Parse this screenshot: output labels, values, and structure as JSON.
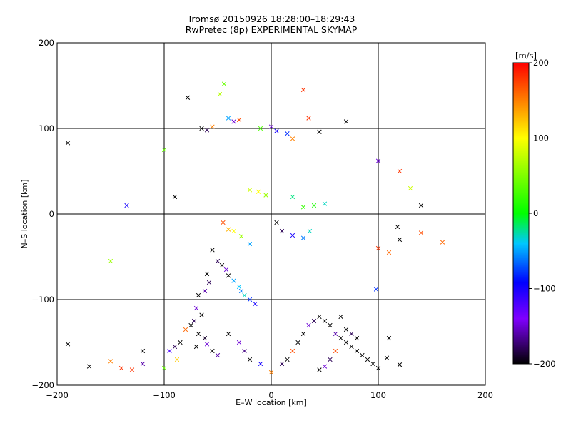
{
  "chart_data": {
    "type": "scatter",
    "title": "Tromsø 20150926 18:28:00–18:29:43",
    "subtitle": "RwPretec (8p) EXPERIMENTAL SKYMAP",
    "xlabel": "E–W location [km]",
    "ylabel": "N–S location [km]",
    "xlim": [
      -200,
      200
    ],
    "ylim": [
      -200,
      200
    ],
    "x_ticks": [
      -200,
      -100,
      0,
      100,
      200
    ],
    "y_ticks": [
      -200,
      -100,
      0,
      100,
      200
    ],
    "grid": true,
    "colorbar": {
      "label": "[m/s]",
      "range": [
        -200,
        200
      ],
      "ticks": [
        200,
        100,
        0,
        -100,
        -200
      ],
      "colors": [
        "#000000",
        "#8000ff",
        "#0000ff",
        "#00c8ff",
        "#00ff00",
        "#ffff00",
        "#ff0000"
      ]
    },
    "series": [
      {
        "marker": "x",
        "points": [
          [
            -190,
            83
          ],
          [
            -190,
            -152
          ],
          [
            -140,
            -180
          ],
          [
            -150,
            -172
          ],
          [
            -170,
            -178
          ],
          [
            -135,
            10
          ],
          [
            -150,
            -55
          ],
          [
            -78,
            136
          ],
          [
            -65,
            100
          ],
          [
            -60,
            98
          ],
          [
            -55,
            102
          ],
          [
            -48,
            140
          ],
          [
            -44,
            152
          ],
          [
            -40,
            112
          ],
          [
            -35,
            108
          ],
          [
            -30,
            110
          ],
          [
            -10,
            100
          ],
          [
            0,
            102
          ],
          [
            5,
            97
          ],
          [
            15,
            94
          ],
          [
            20,
            88
          ],
          [
            35,
            112
          ],
          [
            45,
            96
          ],
          [
            -20,
            28
          ],
          [
            -12,
            26
          ],
          [
            -5,
            22
          ],
          [
            20,
            20
          ],
          [
            30,
            8
          ],
          [
            40,
            10
          ],
          [
            50,
            12
          ],
          [
            -45,
            -10
          ],
          [
            -40,
            -18
          ],
          [
            -35,
            -20
          ],
          [
            -28,
            -26
          ],
          [
            -20,
            -35
          ],
          [
            5,
            -10
          ],
          [
            10,
            -20
          ],
          [
            20,
            -25
          ],
          [
            30,
            -28
          ],
          [
            36,
            -20
          ],
          [
            -55,
            -42
          ],
          [
            -50,
            -55
          ],
          [
            -46,
            -60
          ],
          [
            -42,
            -65
          ],
          [
            -40,
            -72
          ],
          [
            -35,
            -78
          ],
          [
            -30,
            -85
          ],
          [
            -28,
            -90
          ],
          [
            -25,
            -95
          ],
          [
            -20,
            -100
          ],
          [
            -15,
            -105
          ],
          [
            -60,
            -70
          ],
          [
            -58,
            -80
          ],
          [
            -62,
            -90
          ],
          [
            -68,
            -95
          ],
          [
            -70,
            -110
          ],
          [
            -65,
            -118
          ],
          [
            -72,
            -125
          ],
          [
            -75,
            -130
          ],
          [
            -68,
            -140
          ],
          [
            -62,
            -145
          ],
          [
            -60,
            -152
          ],
          [
            -55,
            -160
          ],
          [
            -50,
            -165
          ],
          [
            -70,
            -155
          ],
          [
            -80,
            -135
          ],
          [
            -85,
            -150
          ],
          [
            -90,
            -155
          ],
          [
            -95,
            -160
          ],
          [
            -88,
            -170
          ],
          [
            -100,
            -180
          ],
          [
            -120,
            -175
          ],
          [
            -130,
            -182
          ],
          [
            -40,
            -140
          ],
          [
            -30,
            -150
          ],
          [
            -25,
            -160
          ],
          [
            -20,
            -170
          ],
          [
            -10,
            -175
          ],
          [
            0,
            -185
          ],
          [
            10,
            -175
          ],
          [
            15,
            -170
          ],
          [
            20,
            -160
          ],
          [
            25,
            -150
          ],
          [
            30,
            -140
          ],
          [
            35,
            -130
          ],
          [
            40,
            -125
          ],
          [
            45,
            -120
          ],
          [
            50,
            -125
          ],
          [
            55,
            -130
          ],
          [
            60,
            -140
          ],
          [
            65,
            -145
          ],
          [
            70,
            -150
          ],
          [
            75,
            -155
          ],
          [
            80,
            -160
          ],
          [
            85,
            -165
          ],
          [
            90,
            -170
          ],
          [
            95,
            -175
          ],
          [
            100,
            -180
          ],
          [
            60,
            -160
          ],
          [
            55,
            -170
          ],
          [
            50,
            -178
          ],
          [
            45,
            -182
          ],
          [
            65,
            -120
          ],
          [
            70,
            -135
          ],
          [
            75,
            -140
          ],
          [
            80,
            -145
          ],
          [
            100,
            -40
          ],
          [
            110,
            -45
          ],
          [
            120,
            -30
          ],
          [
            140,
            -22
          ],
          [
            160,
            -33
          ],
          [
            140,
            10
          ],
          [
            100,
            62
          ],
          [
            120,
            50
          ],
          [
            118,
            -15
          ],
          [
            98,
            -88
          ],
          [
            110,
            -145
          ],
          [
            108,
            -168
          ],
          [
            120,
            -176
          ],
          [
            130,
            30
          ],
          [
            30,
            145
          ],
          [
            70,
            108
          ],
          [
            -90,
            20
          ],
          [
            -100,
            75
          ],
          [
            -120,
            -160
          ]
        ],
        "values": [
          -200,
          -200,
          180,
          150,
          -200,
          -100,
          60,
          -200,
          -200,
          -180,
          150,
          70,
          40,
          -50,
          -150,
          170,
          30,
          -150,
          -100,
          -80,
          150,
          180,
          -200,
          80,
          100,
          60,
          -20,
          20,
          10,
          -30,
          170,
          130,
          100,
          60,
          -50,
          -200,
          -180,
          -100,
          -60,
          -30,
          -200,
          -180,
          -200,
          -150,
          -200,
          -50,
          -40,
          -60,
          -30,
          -80,
          -100,
          -200,
          -180,
          -160,
          -200,
          -150,
          -200,
          -180,
          -200,
          -200,
          -190,
          -150,
          -200,
          -160,
          -200,
          160,
          -200,
          -180,
          -120,
          120,
          40,
          -160,
          180,
          -200,
          -150,
          -170,
          -200,
          -100,
          150,
          -180,
          -200,
          170,
          -200,
          -200,
          -150,
          -180,
          -200,
          -200,
          -200,
          -160,
          -200,
          -200,
          -200,
          -200,
          -200,
          -200,
          -200,
          -200,
          170,
          -180,
          -150,
          -200,
          -200,
          -200,
          -180,
          -200,
          180,
          160,
          -200,
          170,
          160,
          -200,
          -150,
          180,
          -200,
          -80,
          -200,
          -200,
          -200,
          80,
          180,
          -200,
          -200,
          40,
          -200
        ]
      }
    ]
  }
}
